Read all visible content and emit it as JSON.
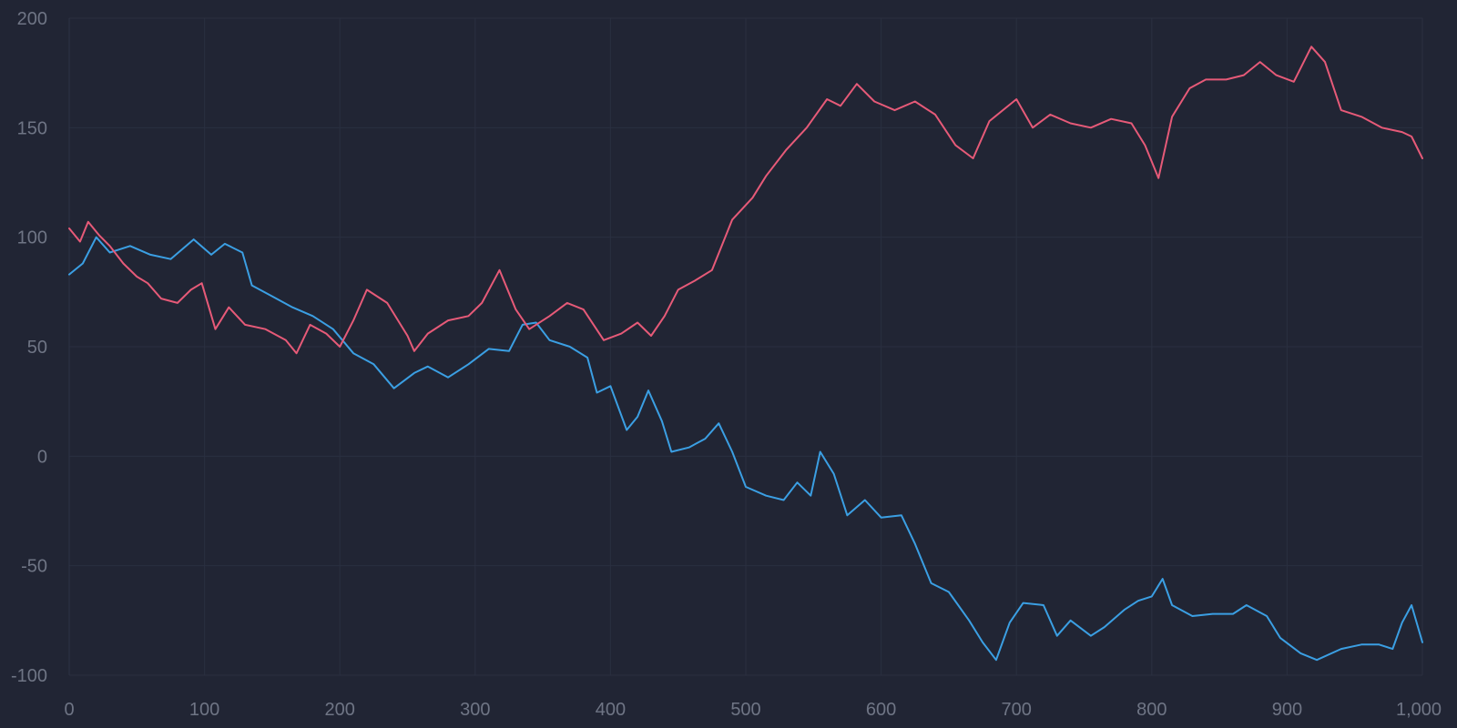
{
  "chart_data": {
    "type": "line",
    "title": "",
    "xlabel": "",
    "ylabel": "",
    "xlim": [
      0,
      1000
    ],
    "ylim": [
      -100,
      200
    ],
    "x_ticks": [
      0,
      100,
      200,
      300,
      400,
      500,
      600,
      700,
      800,
      900,
      1000
    ],
    "x_tick_labels": [
      "0",
      "100",
      "200",
      "300",
      "400",
      "500",
      "600",
      "700",
      "800",
      "900",
      "1,000"
    ],
    "y_ticks": [
      -100,
      -50,
      0,
      50,
      100,
      150,
      200
    ],
    "y_tick_labels": [
      "-100",
      "-50",
      "0",
      "50",
      "100",
      "150",
      "200"
    ],
    "grid": true,
    "legend": "none",
    "background": "#212534",
    "series": [
      {
        "color": "#3b9fe3",
        "points": [
          [
            0,
            83
          ],
          [
            10,
            88
          ],
          [
            20,
            100
          ],
          [
            30,
            93
          ],
          [
            45,
            96
          ],
          [
            60,
            92
          ],
          [
            75,
            90
          ],
          [
            92,
            99
          ],
          [
            105,
            92
          ],
          [
            115,
            97
          ],
          [
            128,
            93
          ],
          [
            135,
            78
          ],
          [
            150,
            73
          ],
          [
            165,
            68
          ],
          [
            180,
            64
          ],
          [
            195,
            58
          ],
          [
            210,
            47
          ],
          [
            225,
            42
          ],
          [
            240,
            31
          ],
          [
            255,
            38
          ],
          [
            265,
            41
          ],
          [
            280,
            36
          ],
          [
            295,
            42
          ],
          [
            310,
            49
          ],
          [
            325,
            48
          ],
          [
            335,
            60
          ],
          [
            345,
            61
          ],
          [
            355,
            53
          ],
          [
            370,
            50
          ],
          [
            383,
            45
          ],
          [
            390,
            29
          ],
          [
            400,
            32
          ],
          [
            412,
            12
          ],
          [
            420,
            18
          ],
          [
            428,
            30
          ],
          [
            438,
            16
          ],
          [
            445,
            2
          ],
          [
            458,
            4
          ],
          [
            470,
            8
          ],
          [
            480,
            15
          ],
          [
            490,
            2
          ],
          [
            500,
            -14
          ],
          [
            515,
            -18
          ],
          [
            528,
            -20
          ],
          [
            538,
            -12
          ],
          [
            548,
            -18
          ],
          [
            555,
            2
          ],
          [
            565,
            -8
          ],
          [
            575,
            -27
          ],
          [
            588,
            -20
          ],
          [
            600,
            -28
          ],
          [
            615,
            -27
          ],
          [
            625,
            -40
          ],
          [
            637,
            -58
          ],
          [
            650,
            -62
          ],
          [
            665,
            -75
          ],
          [
            675,
            -85
          ],
          [
            685,
            -93
          ],
          [
            695,
            -76
          ],
          [
            705,
            -67
          ],
          [
            720,
            -68
          ],
          [
            730,
            -82
          ],
          [
            740,
            -75
          ],
          [
            755,
            -82
          ],
          [
            765,
            -78
          ],
          [
            780,
            -70
          ],
          [
            790,
            -66
          ],
          [
            800,
            -64
          ],
          [
            808,
            -56
          ],
          [
            815,
            -68
          ],
          [
            830,
            -73
          ],
          [
            845,
            -72
          ],
          [
            860,
            -72
          ],
          [
            870,
            -68
          ],
          [
            885,
            -73
          ],
          [
            895,
            -83
          ],
          [
            910,
            -90
          ],
          [
            922,
            -93
          ],
          [
            940,
            -88
          ],
          [
            955,
            -86
          ],
          [
            968,
            -86
          ],
          [
            978,
            -88
          ],
          [
            985,
            -76
          ],
          [
            992,
            -68
          ],
          [
            1000,
            -85
          ]
        ]
      },
      {
        "color": "#e65a78",
        "points": [
          [
            0,
            104
          ],
          [
            8,
            98
          ],
          [
            14,
            107
          ],
          [
            22,
            101
          ],
          [
            30,
            96
          ],
          [
            40,
            88
          ],
          [
            50,
            82
          ],
          [
            58,
            79
          ],
          [
            68,
            72
          ],
          [
            80,
            70
          ],
          [
            90,
            76
          ],
          [
            98,
            79
          ],
          [
            108,
            58
          ],
          [
            118,
            68
          ],
          [
            130,
            60
          ],
          [
            145,
            58
          ],
          [
            160,
            53
          ],
          [
            168,
            47
          ],
          [
            178,
            60
          ],
          [
            190,
            56
          ],
          [
            200,
            50
          ],
          [
            210,
            62
          ],
          [
            220,
            76
          ],
          [
            235,
            70
          ],
          [
            250,
            55
          ],
          [
            255,
            48
          ],
          [
            265,
            56
          ],
          [
            280,
            62
          ],
          [
            295,
            64
          ],
          [
            305,
            70
          ],
          [
            318,
            85
          ],
          [
            330,
            67
          ],
          [
            340,
            58
          ],
          [
            355,
            64
          ],
          [
            368,
            70
          ],
          [
            380,
            67
          ],
          [
            395,
            53
          ],
          [
            408,
            56
          ],
          [
            420,
            61
          ],
          [
            430,
            55
          ],
          [
            440,
            64
          ],
          [
            450,
            76
          ],
          [
            462,
            80
          ],
          [
            475,
            85
          ],
          [
            490,
            108
          ],
          [
            505,
            118
          ],
          [
            515,
            128
          ],
          [
            530,
            140
          ],
          [
            545,
            150
          ],
          [
            560,
            163
          ],
          [
            570,
            160
          ],
          [
            582,
            170
          ],
          [
            595,
            162
          ],
          [
            610,
            158
          ],
          [
            625,
            162
          ],
          [
            640,
            156
          ],
          [
            655,
            142
          ],
          [
            668,
            136
          ],
          [
            680,
            153
          ],
          [
            700,
            163
          ],
          [
            712,
            150
          ],
          [
            725,
            156
          ],
          [
            740,
            152
          ],
          [
            755,
            150
          ],
          [
            770,
            154
          ],
          [
            785,
            152
          ],
          [
            795,
            142
          ],
          [
            805,
            127
          ],
          [
            815,
            155
          ],
          [
            828,
            168
          ],
          [
            840,
            172
          ],
          [
            855,
            172
          ],
          [
            868,
            174
          ],
          [
            880,
            180
          ],
          [
            892,
            174
          ],
          [
            905,
            171
          ],
          [
            918,
            187
          ],
          [
            928,
            180
          ],
          [
            940,
            158
          ],
          [
            955,
            155
          ],
          [
            970,
            150
          ],
          [
            985,
            148
          ],
          [
            992,
            146
          ],
          [
            1000,
            136
          ]
        ]
      }
    ]
  }
}
